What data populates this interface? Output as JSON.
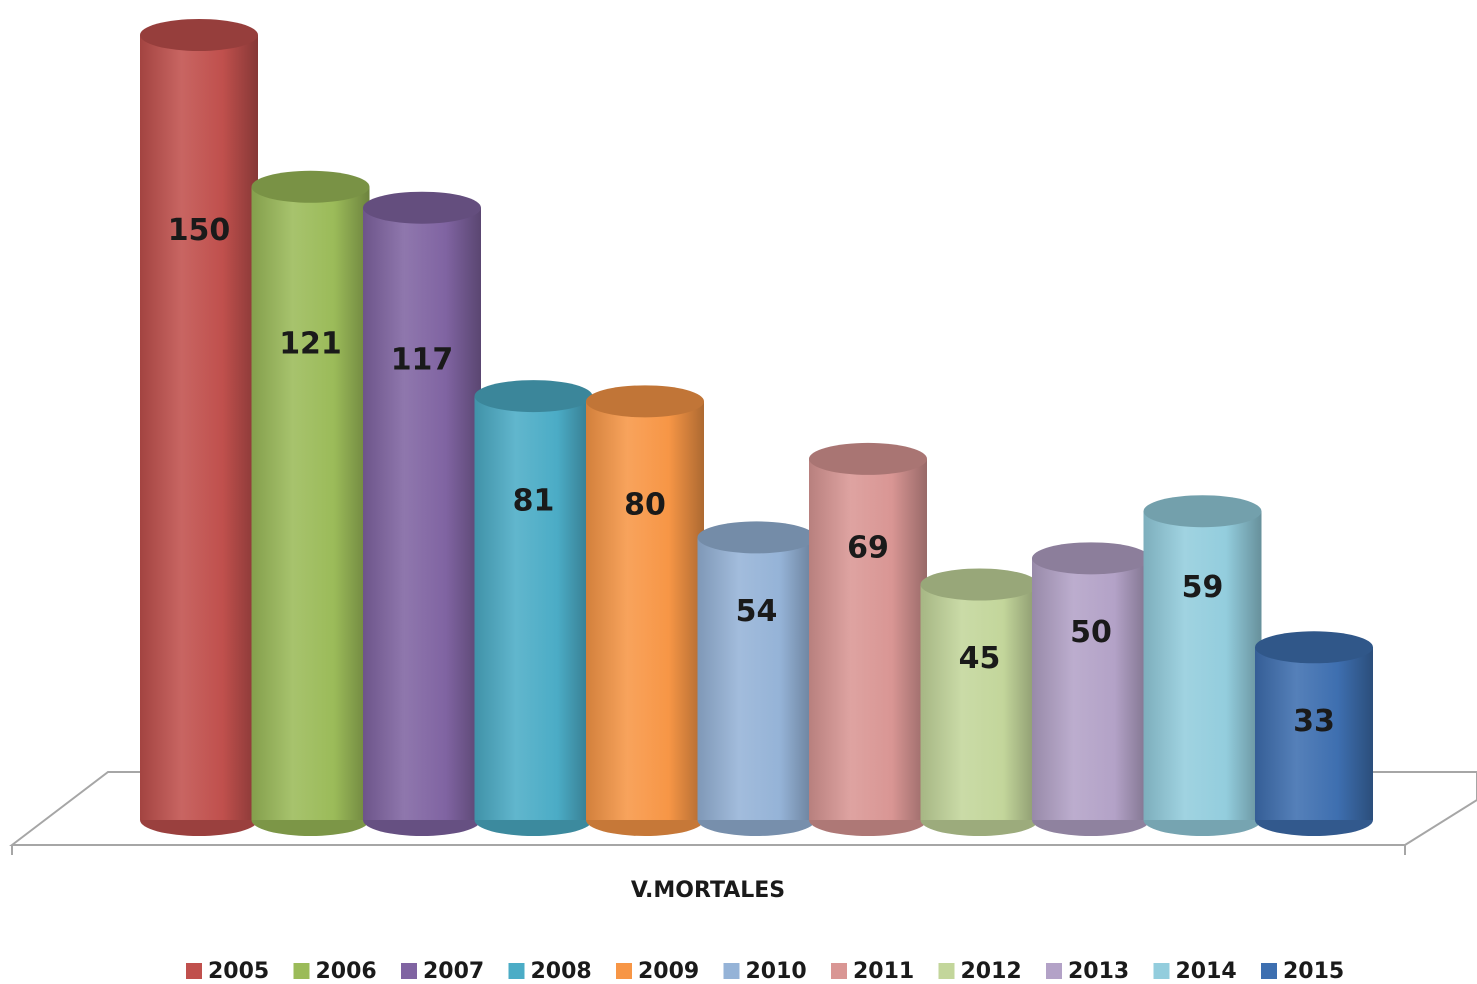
{
  "chart_data": {
    "type": "bar",
    "categories": [
      "V.MORTALES"
    ],
    "series": [
      {
        "name": "2005",
        "color": "#c0504d",
        "values": [
          150
        ]
      },
      {
        "name": "2006",
        "color": "#9bbb59",
        "values": [
          121
        ]
      },
      {
        "name": "2007",
        "color": "#8064a2",
        "values": [
          117
        ]
      },
      {
        "name": "2008",
        "color": "#4bacc6",
        "values": [
          81
        ]
      },
      {
        "name": "2009",
        "color": "#f79646",
        "values": [
          80
        ]
      },
      {
        "name": "2010",
        "color": "#95b3d7",
        "values": [
          54
        ]
      },
      {
        "name": "2011",
        "color": "#d99694",
        "values": [
          69
        ]
      },
      {
        "name": "2012",
        "color": "#c3d69b",
        "values": [
          45
        ]
      },
      {
        "name": "2013",
        "color": "#b3a2c7",
        "values": [
          50
        ]
      },
      {
        "name": "2014",
        "color": "#93cddd",
        "values": [
          59
        ]
      },
      {
        "name": "2015",
        "color": "#3e6fb0",
        "values": [
          33
        ]
      }
    ],
    "legend": "bottom"
  }
}
